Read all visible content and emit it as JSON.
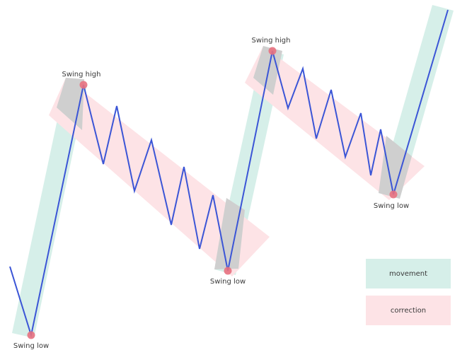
{
  "labels": {
    "swing_low_1": "Swing low",
    "swing_high_1": "Swing high",
    "swing_low_2": "Swing low",
    "swing_high_2": "Swing high",
    "swing_low_3": "Swing low"
  },
  "legend": {
    "movement": "movement",
    "correction": "correction"
  },
  "colors": {
    "movement": "#d6efe9",
    "correction": "#fde3e6",
    "overlap": "#cfcfcf",
    "price_line": "#3b55d6",
    "swing_point": "#e8717f"
  }
}
